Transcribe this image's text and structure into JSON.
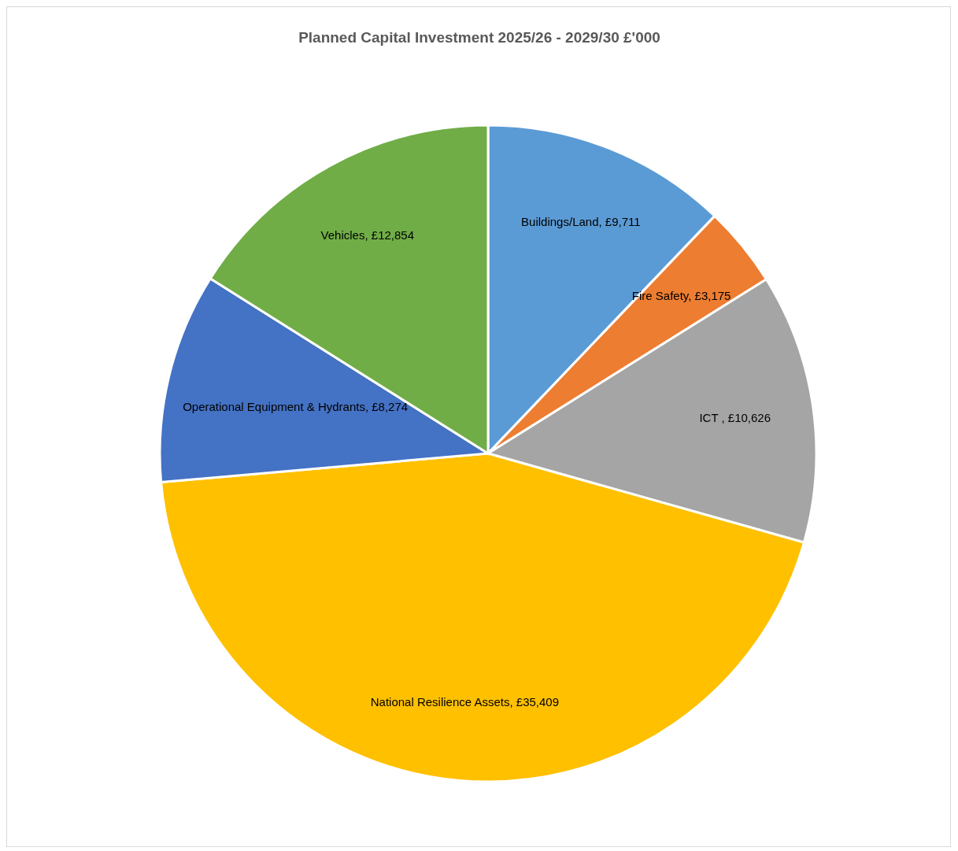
{
  "chart_data": {
    "type": "pie",
    "title": "Planned Capital Investment 2025/26 - 2029/30 £'000",
    "categories": [
      "Buildings/Land",
      "Fire Safety",
      "ICT ",
      "National Resilience Assets",
      "Operational Equipment & Hydrants",
      "Vehicles"
    ],
    "values": [
      9711,
      3175,
      10626,
      35409,
      8274,
      12854
    ],
    "value_labels": [
      "£9,711",
      "£3,175",
      "£10,626",
      "£35,409",
      "£8,274",
      "£12,854"
    ],
    "colors": [
      "#5b9bd5",
      "#ed7d31",
      "#a5a5a5",
      "#ffc000",
      "#4472c4",
      "#70ad47"
    ],
    "legend": false
  }
}
